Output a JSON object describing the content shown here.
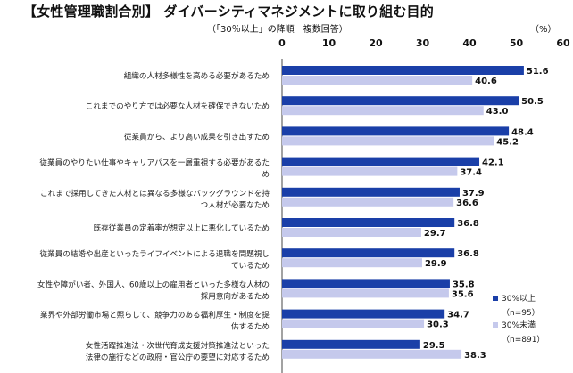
{
  "chart_data": {
    "type": "bar",
    "orientation": "horizontal",
    "title": "【女性管理職割合別】 ダイバーシティマネジメントに取り組む目的",
    "subtitle": "（「30％以上」の降順　複数回答）",
    "unit": "（%）",
    "xlim": [
      0,
      60
    ],
    "xticks": [
      0,
      10,
      20,
      30,
      40,
      50,
      60
    ],
    "grid": false,
    "legend_position": "bottom-right",
    "categories": [
      [
        "組織の人材多様性を高める必要があるため"
      ],
      [
        "これまでのやり方では必要な人材を確保できないため"
      ],
      [
        "従業員から、より高い成果を引き出すため"
      ],
      [
        "従業員のやりたい仕事やキャリアパスを一層重視する必要があるた",
        "め"
      ],
      [
        "これまで採用してきた人材とは異なる多様なバックグラウンドを持",
        "つ人材が必要なため"
      ],
      [
        "既存従業員の定着率が想定以上に悪化しているため"
      ],
      [
        "従業員の結婚や出産といったライフイベントによる退職を問題視し",
        "ているため"
      ],
      [
        "女性や障がい者、外国人、60歳以上の雇用者といった多様な人材の",
        "採用意向があるため"
      ],
      [
        "業界や外部労働市場と照らして、競争力のある福利厚生・制度を提",
        "供するため"
      ],
      [
        "女性活躍推進法・次世代育成支援対策推進法といった",
        "法律の施行などの政府・官公庁の要望に対応するため"
      ]
    ],
    "series": [
      {
        "name": "30%以上",
        "n": "（n=95）",
        "color": "#1a3fa8",
        "values": [
          51.6,
          50.5,
          48.4,
          42.1,
          37.9,
          36.8,
          36.8,
          35.8,
          34.7,
          29.5
        ]
      },
      {
        "name": "30%未満",
        "n": "（n=891）",
        "color": "#c5c9ec",
        "values": [
          40.6,
          43.0,
          45.2,
          37.4,
          36.6,
          29.7,
          29.9,
          35.6,
          30.3,
          38.3
        ]
      }
    ]
  }
}
